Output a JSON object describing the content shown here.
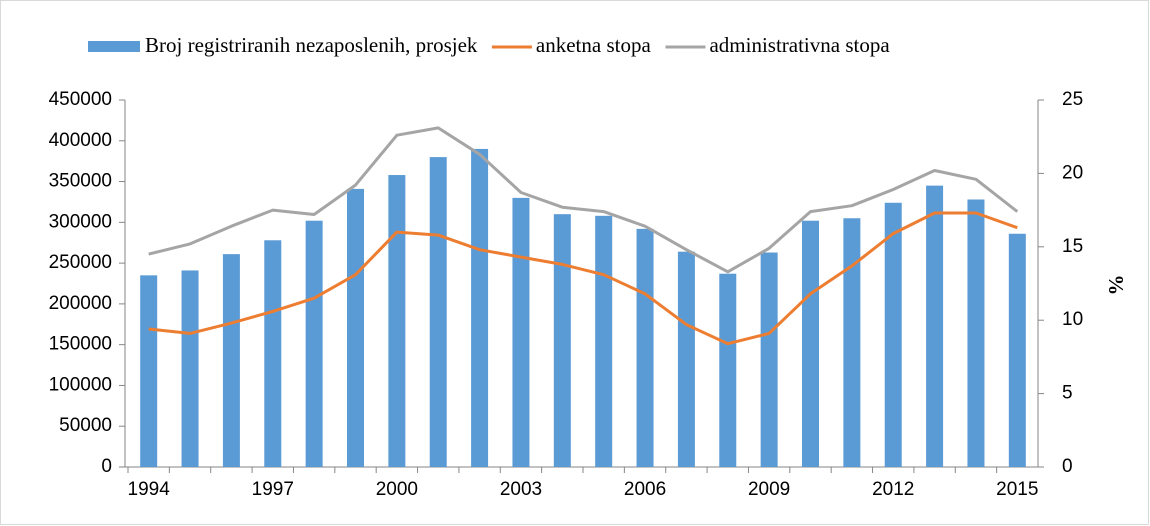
{
  "chart_data": {
    "type": "bar+line",
    "categories": [
      "1994",
      null,
      null,
      "1997",
      null,
      null,
      "2000",
      null,
      null,
      "2003",
      null,
      null,
      "2006",
      null,
      null,
      "2009",
      null,
      null,
      "2012",
      null,
      null,
      "2015"
    ],
    "series": [
      {
        "name": "Broj registriranih nezaposlenih, prosjek",
        "type": "bar",
        "color": "#5b9bd5",
        "values": [
          235000,
          241000,
          261000,
          278000,
          302000,
          341000,
          358000,
          380000,
          390000,
          330000,
          310000,
          308000,
          292000,
          264000,
          237000,
          263000,
          302000,
          305000,
          324000,
          345000,
          328000,
          286000
        ]
      },
      {
        "name": "anketna stopa",
        "type": "line",
        "axis": "y2",
        "color": "#ed7d31",
        "values": [
          9.4,
          9.1,
          9.8,
          10.6,
          11.5,
          13.1,
          16.0,
          15.8,
          14.8,
          14.3,
          13.8,
          13.1,
          11.8,
          9.7,
          8.4,
          9.1,
          11.8,
          13.7,
          15.9,
          17.3,
          17.3,
          16.3
        ]
      },
      {
        "name": "administrativna stopa",
        "type": "line",
        "axis": "y2",
        "color": "#a5a5a5",
        "values": [
          14.5,
          15.2,
          16.4,
          17.5,
          17.2,
          19.2,
          22.6,
          23.1,
          21.3,
          18.7,
          17.7,
          17.4,
          16.4,
          14.8,
          13.3,
          14.9,
          17.4,
          17.8,
          18.9,
          20.2,
          19.6,
          17.4
        ]
      }
    ],
    "ylim": [
      0,
      450000
    ],
    "yticks": [
      0,
      50000,
      100000,
      150000,
      200000,
      250000,
      300000,
      350000,
      400000,
      450000
    ],
    "y2lim": [
      0,
      25
    ],
    "y2ticks": [
      0,
      5,
      10,
      15,
      20,
      25
    ],
    "y2label": "%",
    "legend": "top"
  }
}
